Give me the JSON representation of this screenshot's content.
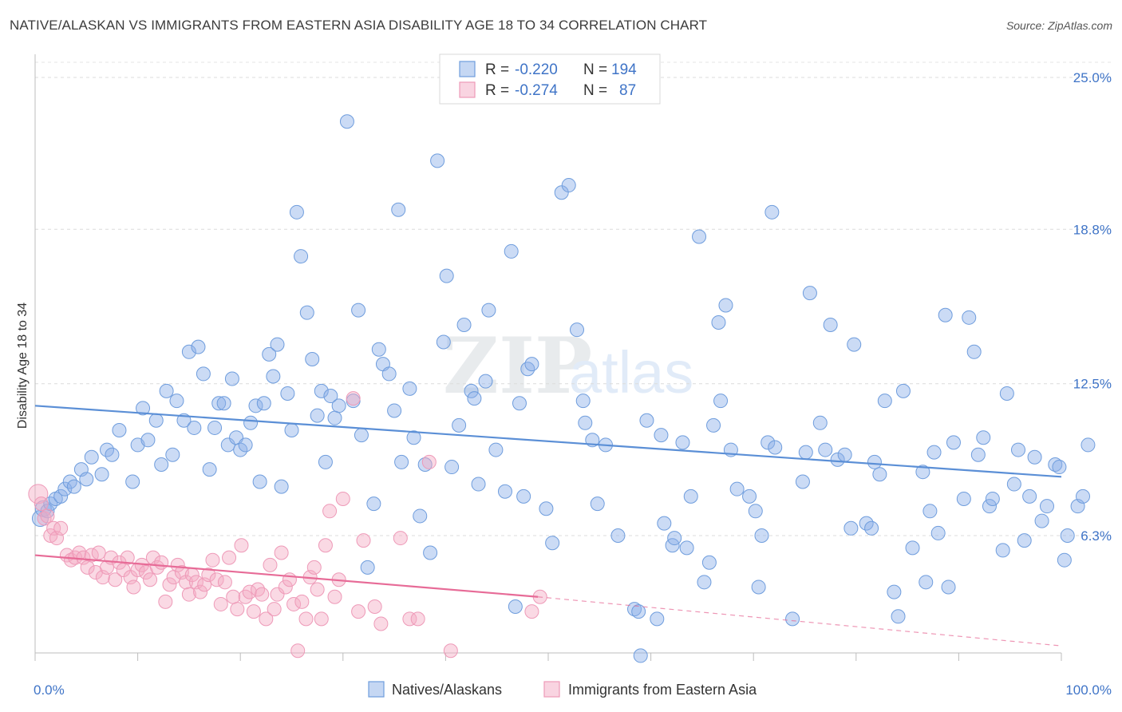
{
  "title": "NATIVE/ALASKAN VS IMMIGRANTS FROM EASTERN ASIA DISABILITY AGE 18 TO 34 CORRELATION CHART",
  "source": "Source: ZipAtlas.com",
  "watermark": {
    "zip": "ZIP",
    "atlas": "atlas"
  },
  "colors": {
    "blue": "#5b8fd6",
    "blue_fill": "rgba(140,176,232,0.45)",
    "blue_stroke": "#6f9ddd",
    "pink": "#e76b97",
    "pink_fill": "rgba(244,170,196,0.45)",
    "pink_stroke": "#ee9ab8",
    "value_text": "#3f74c7"
  },
  "legend": {
    "rows": [
      {
        "r_label": "R = ",
        "r_value": "-0.220",
        "n_label": "N = ",
        "n_value": "194"
      },
      {
        "r_label": "R = ",
        "r_value": "-0.274",
        "n_label": "N = ",
        "n_value": "87"
      }
    ]
  },
  "chart_data": {
    "type": "scatter",
    "title": "NATIVE/ALASKAN VS IMMIGRANTS FROM EASTERN ASIA DISABILITY AGE 18 TO 34 CORRELATION CHART",
    "xlabel": "",
    "ylabel": "Disability Age 18 to 34",
    "xlim": [
      0,
      100
    ],
    "ylim": [
      0,
      26.5
    ],
    "x_tick_labels": [
      "0.0%",
      "100.0%"
    ],
    "y_ticks": [
      6.3,
      12.5,
      18.8,
      25.0
    ],
    "y_tick_labels": [
      "6.3%",
      "12.5%",
      "18.8%",
      "25.0%"
    ],
    "grid": true,
    "legend_position": "top-center",
    "series": [
      {
        "name": "Natives/Alaskans",
        "color": "#5b8fd6",
        "trend": {
          "x0": 0,
          "y0": 11.6,
          "x1": 100,
          "y1": 8.7
        },
        "points": [
          [
            0.5,
            7.0
          ],
          [
            0.8,
            7.4
          ],
          [
            1.2,
            7.3
          ],
          [
            1.5,
            7.6
          ],
          [
            2.0,
            7.8
          ],
          [
            2.5,
            7.9
          ],
          [
            2.9,
            8.2
          ],
          [
            3.4,
            8.5
          ],
          [
            3.8,
            8.3
          ],
          [
            4.5,
            9.0
          ],
          [
            5.0,
            8.6
          ],
          [
            5.5,
            9.5
          ],
          [
            6.5,
            8.8
          ],
          [
            7.0,
            9.8
          ],
          [
            7.5,
            9.6
          ],
          [
            8.2,
            10.6
          ],
          [
            9.5,
            8.5
          ],
          [
            10.0,
            10.0
          ],
          [
            10.5,
            11.5
          ],
          [
            11.0,
            10.2
          ],
          [
            11.8,
            11.0
          ],
          [
            12.3,
            9.2
          ],
          [
            12.8,
            12.2
          ],
          [
            13.4,
            9.6
          ],
          [
            13.8,
            11.8
          ],
          [
            14.5,
            11.0
          ],
          [
            15.0,
            13.8
          ],
          [
            15.5,
            10.7
          ],
          [
            15.9,
            14.0
          ],
          [
            16.4,
            12.9
          ],
          [
            17.0,
            9.0
          ],
          [
            17.5,
            10.7
          ],
          [
            17.9,
            11.7
          ],
          [
            18.4,
            11.7
          ],
          [
            18.8,
            10.0
          ],
          [
            19.2,
            12.7
          ],
          [
            19.6,
            10.3
          ],
          [
            20.0,
            9.8
          ],
          [
            20.5,
            10.0
          ],
          [
            21.0,
            10.9
          ],
          [
            21.5,
            11.6
          ],
          [
            21.9,
            8.5
          ],
          [
            22.3,
            11.7
          ],
          [
            22.8,
            13.7
          ],
          [
            23.2,
            12.8
          ],
          [
            23.6,
            14.1
          ],
          [
            24.0,
            8.3
          ],
          [
            24.6,
            12.1
          ],
          [
            25.0,
            10.6
          ],
          [
            25.5,
            19.5
          ],
          [
            25.9,
            17.7
          ],
          [
            26.5,
            15.4
          ],
          [
            27.0,
            13.5
          ],
          [
            27.5,
            11.2
          ],
          [
            27.9,
            12.2
          ],
          [
            28.3,
            9.3
          ],
          [
            28.8,
            12.0
          ],
          [
            29.2,
            11.1
          ],
          [
            29.6,
            11.6
          ],
          [
            30.4,
            23.2
          ],
          [
            31.0,
            11.8
          ],
          [
            31.5,
            15.5
          ],
          [
            31.8,
            10.4
          ],
          [
            32.4,
            5.0
          ],
          [
            33.0,
            7.6
          ],
          [
            33.5,
            13.9
          ],
          [
            33.9,
            13.3
          ],
          [
            34.5,
            12.9
          ],
          [
            35.0,
            11.4
          ],
          [
            35.4,
            19.6
          ],
          [
            35.7,
            9.3
          ],
          [
            36.5,
            12.3
          ],
          [
            36.9,
            10.3
          ],
          [
            37.5,
            7.1
          ],
          [
            38.0,
            9.2
          ],
          [
            38.5,
            5.6
          ],
          [
            39.2,
            21.6
          ],
          [
            39.8,
            14.2
          ],
          [
            40.1,
            16.9
          ],
          [
            40.6,
            9.1
          ],
          [
            41.3,
            10.8
          ],
          [
            41.8,
            14.9
          ],
          [
            42.5,
            12.2
          ],
          [
            42.8,
            11.9
          ],
          [
            43.2,
            8.4
          ],
          [
            43.9,
            12.6
          ],
          [
            44.2,
            15.5
          ],
          [
            44.9,
            9.8
          ],
          [
            45.8,
            8.1
          ],
          [
            46.4,
            17.9
          ],
          [
            46.8,
            3.4
          ],
          [
            47.2,
            11.7
          ],
          [
            47.6,
            7.9
          ],
          [
            48.0,
            13.1
          ],
          [
            48.4,
            13.3
          ],
          [
            49.8,
            7.4
          ],
          [
            50.4,
            6.0
          ],
          [
            51.3,
            20.3
          ],
          [
            52.0,
            20.6
          ],
          [
            52.8,
            14.7
          ],
          [
            53.4,
            11.8
          ],
          [
            53.6,
            10.9
          ],
          [
            54.3,
            10.2
          ],
          [
            54.8,
            7.6
          ],
          [
            55.6,
            10.0
          ],
          [
            56.8,
            6.3
          ],
          [
            58.4,
            3.3
          ],
          [
            58.8,
            3.2
          ],
          [
            59.0,
            1.4
          ],
          [
            59.6,
            11.0
          ],
          [
            60.6,
            2.9
          ],
          [
            61.0,
            10.4
          ],
          [
            61.3,
            6.8
          ],
          [
            62.1,
            5.9
          ],
          [
            62.3,
            6.2
          ],
          [
            63.1,
            10.1
          ],
          [
            63.5,
            5.8
          ],
          [
            63.9,
            7.9
          ],
          [
            64.7,
            18.5
          ],
          [
            65.2,
            4.4
          ],
          [
            65.7,
            5.2
          ],
          [
            66.1,
            10.8
          ],
          [
            66.6,
            15.0
          ],
          [
            66.8,
            11.8
          ],
          [
            67.3,
            15.7
          ],
          [
            67.8,
            9.8
          ],
          [
            68.4,
            8.2
          ],
          [
            69.6,
            7.9
          ],
          [
            70.2,
            7.3
          ],
          [
            70.5,
            4.2
          ],
          [
            70.8,
            6.3
          ],
          [
            71.4,
            10.1
          ],
          [
            71.8,
            19.5
          ],
          [
            72.1,
            9.9
          ],
          [
            73.8,
            2.9
          ],
          [
            74.8,
            8.5
          ],
          [
            75.1,
            9.7
          ],
          [
            75.5,
            16.2
          ],
          [
            76.5,
            10.9
          ],
          [
            77.0,
            9.8
          ],
          [
            77.5,
            14.9
          ],
          [
            78.2,
            9.4
          ],
          [
            78.9,
            9.6
          ],
          [
            79.5,
            6.6
          ],
          [
            79.8,
            14.1
          ],
          [
            81.0,
            6.8
          ],
          [
            81.5,
            6.6
          ],
          [
            81.8,
            9.3
          ],
          [
            82.3,
            8.8
          ],
          [
            82.8,
            11.8
          ],
          [
            83.7,
            4.0
          ],
          [
            84.1,
            3.0
          ],
          [
            84.6,
            12.2
          ],
          [
            85.5,
            5.8
          ],
          [
            86.5,
            8.9
          ],
          [
            86.8,
            4.4
          ],
          [
            87.2,
            7.3
          ],
          [
            87.6,
            9.7
          ],
          [
            88.0,
            6.4
          ],
          [
            88.7,
            15.3
          ],
          [
            89.0,
            4.2
          ],
          [
            89.5,
            10.1
          ],
          [
            90.5,
            7.8
          ],
          [
            91.0,
            15.2
          ],
          [
            91.5,
            13.8
          ],
          [
            91.9,
            9.6
          ],
          [
            92.4,
            10.3
          ],
          [
            93.0,
            7.5
          ],
          [
            93.3,
            7.8
          ],
          [
            94.3,
            5.7
          ],
          [
            94.7,
            12.1
          ],
          [
            95.4,
            8.4
          ],
          [
            95.8,
            9.8
          ],
          [
            96.4,
            6.1
          ],
          [
            96.9,
            7.9
          ],
          [
            97.4,
            9.5
          ],
          [
            98.1,
            6.9
          ],
          [
            98.6,
            7.5
          ],
          [
            99.4,
            9.2
          ],
          [
            99.8,
            9.1
          ],
          [
            100.3,
            5.3
          ],
          [
            100.6,
            6.3
          ],
          [
            101.6,
            7.5
          ],
          [
            102.1,
            7.9
          ],
          [
            102.6,
            10.0
          ]
        ]
      },
      {
        "name": "Immigrants from Eastern Asia",
        "color": "#e76b97",
        "trend": {
          "x0": 0,
          "y0": 5.5,
          "x1": 49,
          "y1": 3.8
        },
        "trend_extension": {
          "x0": 49,
          "y0": 3.8,
          "x1": 100,
          "y1": 1.8
        },
        "points": [
          [
            0.3,
            8.0
          ],
          [
            0.6,
            7.6
          ],
          [
            0.9,
            7.0
          ],
          [
            1.2,
            7.1
          ],
          [
            1.5,
            6.3
          ],
          [
            1.8,
            6.6
          ],
          [
            2.1,
            6.2
          ],
          [
            2.5,
            6.6
          ],
          [
            3.1,
            5.5
          ],
          [
            3.5,
            5.3
          ],
          [
            3.9,
            5.4
          ],
          [
            4.3,
            5.6
          ],
          [
            4.7,
            5.4
          ],
          [
            5.1,
            5.0
          ],
          [
            5.5,
            5.5
          ],
          [
            5.9,
            4.8
          ],
          [
            6.2,
            5.6
          ],
          [
            6.6,
            4.6
          ],
          [
            7.0,
            5.0
          ],
          [
            7.4,
            5.4
          ],
          [
            7.8,
            4.5
          ],
          [
            8.2,
            5.2
          ],
          [
            8.6,
            4.9
          ],
          [
            9.0,
            5.4
          ],
          [
            9.3,
            4.6
          ],
          [
            9.6,
            4.2
          ],
          [
            10.0,
            4.9
          ],
          [
            10.4,
            5.1
          ],
          [
            10.8,
            4.8
          ],
          [
            11.2,
            4.5
          ],
          [
            11.5,
            5.4
          ],
          [
            11.9,
            5.0
          ],
          [
            12.3,
            5.2
          ],
          [
            12.7,
            3.6
          ],
          [
            13.1,
            4.3
          ],
          [
            13.5,
            4.6
          ],
          [
            13.9,
            5.1
          ],
          [
            14.3,
            4.8
          ],
          [
            14.7,
            4.4
          ],
          [
            15.0,
            3.9
          ],
          [
            15.3,
            4.7
          ],
          [
            15.7,
            4.4
          ],
          [
            16.1,
            4.0
          ],
          [
            16.5,
            4.3
          ],
          [
            16.9,
            4.7
          ],
          [
            17.3,
            5.3
          ],
          [
            17.7,
            4.5
          ],
          [
            18.1,
            3.5
          ],
          [
            18.5,
            4.4
          ],
          [
            18.9,
            5.4
          ],
          [
            19.3,
            3.8
          ],
          [
            19.7,
            3.3
          ],
          [
            20.1,
            5.9
          ],
          [
            20.5,
            3.8
          ],
          [
            20.9,
            4.0
          ],
          [
            21.3,
            3.2
          ],
          [
            21.7,
            4.1
          ],
          [
            22.1,
            3.9
          ],
          [
            22.5,
            2.9
          ],
          [
            22.9,
            5.1
          ],
          [
            23.3,
            3.3
          ],
          [
            23.6,
            3.9
          ],
          [
            24.0,
            5.6
          ],
          [
            24.4,
            4.2
          ],
          [
            24.8,
            4.5
          ],
          [
            25.2,
            3.5
          ],
          [
            25.6,
            1.6
          ],
          [
            26.0,
            3.6
          ],
          [
            26.4,
            2.9
          ],
          [
            26.8,
            4.6
          ],
          [
            27.2,
            5.0
          ],
          [
            27.5,
            4.1
          ],
          [
            27.9,
            2.9
          ],
          [
            28.3,
            5.9
          ],
          [
            28.7,
            7.3
          ],
          [
            29.2,
            3.8
          ],
          [
            29.6,
            4.5
          ],
          [
            30.0,
            7.8
          ],
          [
            31.0,
            11.9
          ],
          [
            31.5,
            3.2
          ],
          [
            32.0,
            6.1
          ],
          [
            33.1,
            3.4
          ],
          [
            33.7,
            2.7
          ],
          [
            35.6,
            6.2
          ],
          [
            36.5,
            2.9
          ],
          [
            37.3,
            2.9
          ],
          [
            38.4,
            9.3
          ],
          [
            40.5,
            1.6
          ],
          [
            48.4,
            3.2
          ],
          [
            49.2,
            3.8
          ]
        ]
      }
    ]
  },
  "bottom_legend": [
    {
      "label": "Natives/Alaskans"
    },
    {
      "label": "Immigrants from Eastern Asia"
    }
  ]
}
